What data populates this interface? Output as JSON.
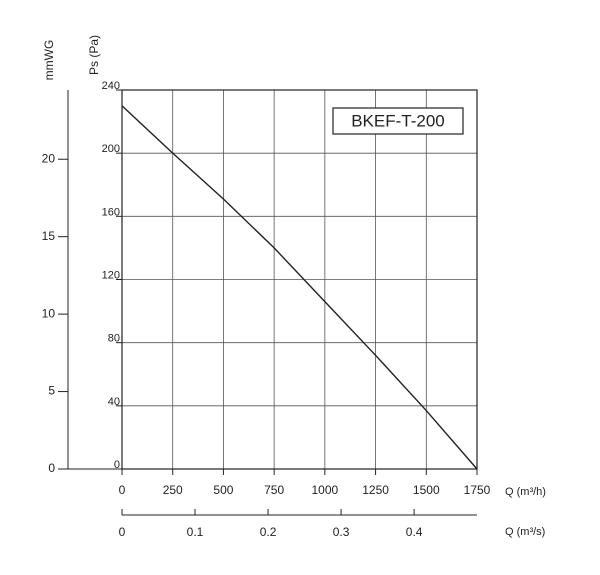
{
  "chart_data": {
    "type": "line",
    "xlabel": "Q (m³/h)",
    "ylabel": "Ps (Pa)",
    "y2label": "mmWG",
    "x2label": "Q (m³/s)",
    "x": [
      0,
      250,
      500,
      750,
      1000,
      1250,
      1500,
      1750
    ],
    "series": [
      {
        "name": "BKEF-T-200",
        "color": "#222222",
        "values": [
          230,
          200,
          171,
          140,
          106,
          72,
          37,
          0
        ]
      }
    ],
    "xlim": [
      0,
      1750
    ],
    "xticks": [
      0,
      250,
      500,
      750,
      1000,
      1250,
      1500,
      1750
    ],
    "ylim": [
      0,
      240
    ],
    "yticks": [
      0,
      40,
      80,
      120,
      160,
      200,
      240
    ],
    "y2lim": [
      0,
      24.47
    ],
    "y2ticks": [
      0,
      5,
      10,
      15,
      20
    ],
    "x2lim": [
      0,
      0.4861
    ],
    "x2ticks": [
      0,
      0.1,
      0.2,
      0.3,
      0.4
    ],
    "grid": true
  }
}
